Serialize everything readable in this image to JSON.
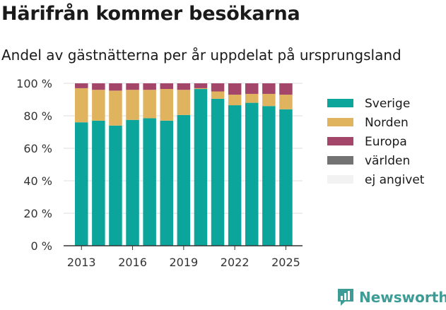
{
  "title": "Härifrån kommer besökarna",
  "subtitle": "Andel av gästnätterna per år uppdelat på ursprungsland",
  "brand": {
    "name": "Newsworthy",
    "icon": "newsworthy-logo-icon"
  },
  "chart_data": {
    "type": "bar",
    "stacked": true,
    "title": "Härifrån kommer besökarna",
    "subtitle": "Andel av gästnätterna per år uppdelat på ursprungsland",
    "xlabel": "",
    "ylabel": "",
    "ylim": [
      0,
      100
    ],
    "grid": true,
    "legend_position": "right",
    "categories": [
      "2013",
      "2014",
      "2015",
      "2016",
      "2017",
      "2018",
      "2019",
      "2020",
      "2021",
      "2022",
      "2023",
      "2024",
      "2025"
    ],
    "x_tick_labels": [
      "2013",
      "2016",
      "2019",
      "2022",
      "2025"
    ],
    "y_tick_labels": [
      "0 %",
      "20 %",
      "40 %",
      "60 %",
      "80 %",
      "100 %"
    ],
    "series": [
      {
        "name": "Sverige",
        "color": "#0ca59c",
        "values": [
          76,
          77,
          74,
          77.5,
          78.5,
          77,
          80.5,
          96.5,
          90.5,
          86.5,
          88,
          86,
          84
        ]
      },
      {
        "name": "Norden",
        "color": "#e0b35f",
        "values": [
          21,
          19,
          21.5,
          18.5,
          17.5,
          19.5,
          15.5,
          0.5,
          4.5,
          6.5,
          5.5,
          7.5,
          9
        ]
      },
      {
        "name": "Europa",
        "color": "#a4456a",
        "values": [
          3,
          4,
          4.5,
          4,
          4,
          3.5,
          4,
          3,
          5,
          7,
          6.5,
          6.5,
          7
        ]
      },
      {
        "name": "världen",
        "color": "#737373",
        "values": [
          0,
          0,
          0,
          0,
          0,
          0,
          0,
          0,
          0,
          0,
          0,
          0,
          0
        ]
      },
      {
        "name": "ej angivet",
        "color": "#f2f2f2",
        "values": [
          0,
          0,
          0,
          0,
          0,
          0,
          0,
          0,
          0,
          0,
          0,
          0,
          0
        ]
      }
    ]
  }
}
